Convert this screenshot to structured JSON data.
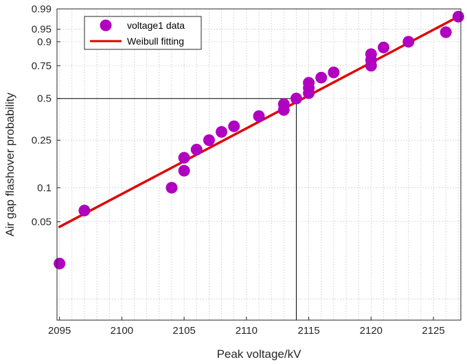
{
  "chart_data": {
    "type": "scatter",
    "xlabel": "Peak voltage/kV",
    "ylabel": "Air gap flashover probability",
    "x_ticks": [
      2095,
      2100,
      2105,
      2110,
      2115,
      2120,
      2125
    ],
    "xlim": [
      2094.8,
      2127.2
    ],
    "y_scale": "weibull",
    "y_ticks": [
      0.05,
      0.1,
      0.25,
      0.5,
      0.75,
      0.9,
      0.95,
      0.99
    ],
    "y_tick_labels": [
      "0.05",
      "0.1",
      "0.25",
      "0.5",
      "0.75",
      "0.9",
      "0.95",
      "0.99"
    ],
    "ylim": [
      0.0064,
      0.99
    ],
    "grid": true,
    "legend_position": "top-left",
    "series": [
      {
        "name": "voltage1 data",
        "type": "scatter",
        "color": "#b000c0",
        "points": [
          {
            "x": 2095,
            "y": 0.021
          },
          {
            "x": 2097,
            "y": 0.063
          },
          {
            "x": 2104,
            "y": 0.1
          },
          {
            "x": 2105,
            "y": 0.14
          },
          {
            "x": 2105,
            "y": 0.18
          },
          {
            "x": 2106,
            "y": 0.21
          },
          {
            "x": 2107,
            "y": 0.25
          },
          {
            "x": 2108,
            "y": 0.29
          },
          {
            "x": 2109,
            "y": 0.32
          },
          {
            "x": 2111,
            "y": 0.38
          },
          {
            "x": 2113,
            "y": 0.42
          },
          {
            "x": 2113,
            "y": 0.46
          },
          {
            "x": 2114,
            "y": 0.5
          },
          {
            "x": 2115,
            "y": 0.54
          },
          {
            "x": 2115,
            "y": 0.58
          },
          {
            "x": 2115,
            "y": 0.62
          },
          {
            "x": 2116,
            "y": 0.66
          },
          {
            "x": 2117,
            "y": 0.7
          },
          {
            "x": 2120,
            "y": 0.75
          },
          {
            "x": 2120,
            "y": 0.79
          },
          {
            "x": 2120,
            "y": 0.83
          },
          {
            "x": 2121,
            "y": 0.87
          },
          {
            "x": 2123,
            "y": 0.9
          },
          {
            "x": 2126,
            "y": 0.94
          },
          {
            "x": 2127,
            "y": 0.98
          }
        ]
      },
      {
        "name": "Weibull fitting",
        "type": "line",
        "color": "#e00000",
        "points": [
          {
            "x": 2095,
            "y": 0.045
          },
          {
            "x": 2127,
            "y": 0.98
          }
        ]
      }
    ],
    "annotation": {
      "description": "reference lines at 50% probability",
      "x": 2114,
      "y": 0.5
    }
  }
}
